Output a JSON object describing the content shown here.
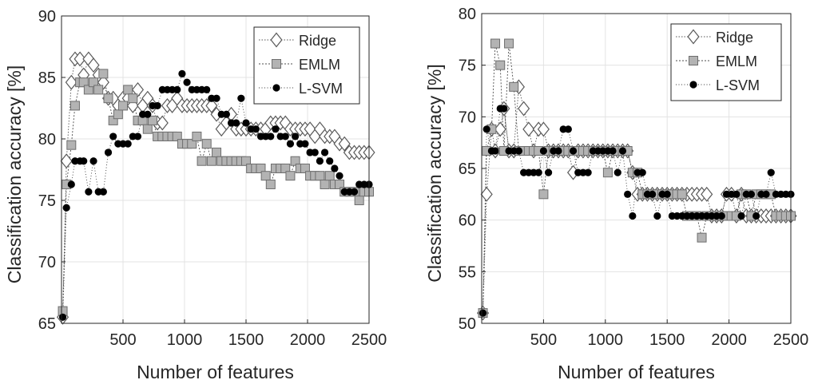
{
  "chart_data": [
    {
      "type": "line",
      "xlabel": "Number of features",
      "ylabel": "Classification accuracy [%]",
      "xlim": [
        0,
        2500
      ],
      "ylim": [
        65,
        90
      ],
      "xticks": [
        500,
        1000,
        1500,
        2000,
        2500
      ],
      "yticks": [
        65,
        70,
        75,
        80,
        85,
        90
      ],
      "grid": true,
      "legend_position": "top-right",
      "series": [
        {
          "name": "Ridge",
          "marker": "diamond",
          "x": [
            10,
            40,
            80,
            110,
            150,
            180,
            220,
            260,
            300,
            340,
            380,
            420,
            460,
            500,
            540,
            580,
            620,
            660,
            700,
            740,
            780,
            820,
            860,
            900,
            940,
            980,
            1020,
            1060,
            1100,
            1140,
            1180,
            1220,
            1260,
            1300,
            1340,
            1380,
            1420,
            1460,
            1500,
            1540,
            1580,
            1620,
            1660,
            1700,
            1740,
            1780,
            1820,
            1860,
            1900,
            1940,
            1980,
            2020,
            2060,
            2100,
            2140,
            2180,
            2220,
            2260,
            2300,
            2340,
            2380,
            2420,
            2460,
            2500
          ],
          "y": [
            65.5,
            78.2,
            84.6,
            86.5,
            86.5,
            85.2,
            86.5,
            86.0,
            85.2,
            84.6,
            83.3,
            83.3,
            82.7,
            83.3,
            83.3,
            82.7,
            84.0,
            82.7,
            83.3,
            82.7,
            81.3,
            81.3,
            82.7,
            82.7,
            83.3,
            82.7,
            82.7,
            82.7,
            82.7,
            82.7,
            82.7,
            82.7,
            82.0,
            80.8,
            81.3,
            82.0,
            80.8,
            80.8,
            80.8,
            80.8,
            80.8,
            80.8,
            80.8,
            81.3,
            81.3,
            81.3,
            81.3,
            80.8,
            80.8,
            80.8,
            80.8,
            80.8,
            80.2,
            80.8,
            80.2,
            80.2,
            80.2,
            79.6,
            79.6,
            78.9,
            78.9,
            78.9,
            78.9,
            78.9
          ]
        },
        {
          "name": "EMLM",
          "marker": "square",
          "x": [
            10,
            40,
            80,
            110,
            150,
            180,
            220,
            260,
            300,
            340,
            380,
            420,
            460,
            500,
            540,
            580,
            620,
            660,
            700,
            740,
            780,
            820,
            860,
            900,
            940,
            980,
            1020,
            1060,
            1100,
            1140,
            1180,
            1220,
            1260,
            1300,
            1340,
            1380,
            1420,
            1460,
            1500,
            1540,
            1580,
            1620,
            1660,
            1700,
            1740,
            1780,
            1820,
            1860,
            1900,
            1940,
            1980,
            2020,
            2060,
            2100,
            2140,
            2180,
            2220,
            2260,
            2300,
            2340,
            2380,
            2420,
            2460,
            2500
          ],
          "y": [
            66.0,
            76.3,
            79.5,
            82.7,
            84.6,
            84.6,
            84.0,
            84.6,
            84.0,
            85.3,
            83.3,
            81.5,
            82.0,
            82.7,
            84.0,
            83.3,
            81.5,
            81.5,
            80.8,
            81.5,
            80.2,
            80.2,
            80.2,
            80.2,
            80.2,
            79.6,
            79.6,
            79.6,
            80.2,
            78.2,
            79.6,
            78.2,
            78.9,
            78.2,
            78.2,
            78.2,
            78.2,
            78.2,
            78.2,
            77.6,
            77.6,
            77.6,
            77.0,
            76.3,
            77.6,
            77.6,
            77.6,
            77.0,
            78.2,
            77.6,
            77.6,
            77.0,
            77.0,
            77.0,
            76.3,
            77.0,
            76.3,
            76.3,
            75.7,
            75.7,
            75.7,
            75.0,
            75.7,
            75.7
          ]
        },
        {
          "name": "L-SVM",
          "marker": "circle",
          "x": [
            10,
            40,
            80,
            110,
            150,
            180,
            220,
            260,
            300,
            340,
            380,
            420,
            460,
            500,
            540,
            580,
            620,
            660,
            700,
            740,
            780,
            820,
            860,
            900,
            940,
            980,
            1020,
            1060,
            1100,
            1140,
            1180,
            1220,
            1260,
            1300,
            1340,
            1380,
            1420,
            1460,
            1500,
            1540,
            1580,
            1620,
            1660,
            1700,
            1740,
            1780,
            1820,
            1860,
            1900,
            1940,
            1980,
            2020,
            2060,
            2100,
            2140,
            2180,
            2220,
            2260,
            2300,
            2340,
            2380,
            2420,
            2460,
            2500
          ],
          "y": [
            65.5,
            74.4,
            76.3,
            78.2,
            78.2,
            78.2,
            75.7,
            78.2,
            75.7,
            75.7,
            78.9,
            80.2,
            79.6,
            79.6,
            79.6,
            80.2,
            80.2,
            82.0,
            82.0,
            82.7,
            82.7,
            84.0,
            84.0,
            84.0,
            84.0,
            85.3,
            84.6,
            84.0,
            84.0,
            84.0,
            84.0,
            83.3,
            83.3,
            82.0,
            82.0,
            81.3,
            81.3,
            83.3,
            81.3,
            80.8,
            80.8,
            80.2,
            80.2,
            80.2,
            80.8,
            80.2,
            80.2,
            79.6,
            80.2,
            79.6,
            79.6,
            78.9,
            78.9,
            78.2,
            78.9,
            78.2,
            77.6,
            77.0,
            75.7,
            75.7,
            75.7,
            76.3,
            76.3,
            76.3
          ]
        }
      ]
    },
    {
      "type": "line",
      "xlabel": "Number of features",
      "ylabel": "Classification accuracy [%]",
      "xlim": [
        0,
        2500
      ],
      "ylim": [
        50,
        80
      ],
      "xticks": [
        500,
        1000,
        1500,
        2000,
        2500
      ],
      "yticks": [
        50,
        55,
        60,
        65,
        70,
        75,
        80
      ],
      "grid": true,
      "legend_position": "top-right",
      "series": [
        {
          "name": "Ridge",
          "marker": "diamond",
          "x": [
            10,
            40,
            80,
            110,
            150,
            180,
            220,
            260,
            300,
            340,
            380,
            420,
            460,
            500,
            540,
            580,
            620,
            660,
            700,
            740,
            780,
            820,
            860,
            900,
            940,
            980,
            1020,
            1060,
            1100,
            1140,
            1180,
            1220,
            1260,
            1300,
            1340,
            1380,
            1420,
            1460,
            1500,
            1540,
            1580,
            1620,
            1660,
            1700,
            1740,
            1780,
            1820,
            1860,
            1900,
            1940,
            1980,
            2020,
            2060,
            2100,
            2140,
            2180,
            2220,
            2260,
            2300,
            2340,
            2380,
            2420,
            2460,
            2500
          ],
          "y": [
            51.0,
            62.5,
            68.8,
            66.7,
            68.8,
            70.8,
            66.7,
            66.7,
            72.9,
            70.8,
            68.8,
            66.7,
            68.8,
            68.8,
            66.7,
            66.7,
            66.7,
            66.7,
            66.7,
            64.6,
            66.7,
            66.7,
            66.7,
            66.7,
            66.7,
            66.7,
            66.7,
            66.7,
            66.7,
            66.7,
            66.7,
            64.6,
            62.5,
            62.5,
            62.5,
            62.5,
            62.5,
            62.5,
            62.5,
            62.5,
            62.5,
            62.5,
            62.5,
            62.5,
            62.5,
            62.5,
            62.5,
            60.4,
            60.4,
            60.4,
            62.5,
            62.5,
            60.4,
            62.5,
            60.4,
            60.4,
            60.4,
            60.4,
            60.4,
            60.4,
            60.4,
            60.4,
            60.4,
            60.4
          ]
        },
        {
          "name": "EMLM",
          "marker": "square",
          "x": [
            10,
            40,
            80,
            110,
            150,
            180,
            220,
            260,
            300,
            340,
            380,
            420,
            460,
            500,
            540,
            580,
            620,
            660,
            700,
            740,
            780,
            820,
            860,
            900,
            940,
            980,
            1020,
            1060,
            1100,
            1140,
            1180,
            1220,
            1260,
            1300,
            1340,
            1380,
            1420,
            1460,
            1500,
            1540,
            1580,
            1620,
            1660,
            1700,
            1740,
            1780,
            1820,
            1860,
            1900,
            1940,
            1980,
            2020,
            2060,
            2100,
            2140,
            2180,
            2220,
            2260,
            2300,
            2340,
            2380,
            2420,
            2460,
            2500
          ],
          "y": [
            51.0,
            66.7,
            68.8,
            77.1,
            75.0,
            66.7,
            77.1,
            72.9,
            66.7,
            66.7,
            66.7,
            66.7,
            66.7,
            62.5,
            66.7,
            66.7,
            66.7,
            66.7,
            66.7,
            66.7,
            66.7,
            66.7,
            66.7,
            66.7,
            66.7,
            66.7,
            64.6,
            66.7,
            66.7,
            66.7,
            66.7,
            64.6,
            64.6,
            62.5,
            62.5,
            62.5,
            62.5,
            62.5,
            62.5,
            62.5,
            62.5,
            62.5,
            60.4,
            60.4,
            60.4,
            58.3,
            60.4,
            60.4,
            60.4,
            60.4,
            60.4,
            60.4,
            60.4,
            62.5,
            62.5,
            60.4,
            62.5,
            62.5,
            62.5,
            62.5,
            60.4,
            60.4,
            60.4,
            60.4
          ]
        },
        {
          "name": "L-SVM",
          "marker": "circle",
          "x": [
            10,
            40,
            80,
            110,
            150,
            180,
            220,
            260,
            300,
            340,
            380,
            420,
            460,
            500,
            540,
            580,
            620,
            660,
            700,
            740,
            780,
            820,
            860,
            900,
            940,
            980,
            1020,
            1060,
            1100,
            1140,
            1180,
            1220,
            1260,
            1300,
            1340,
            1380,
            1420,
            1460,
            1500,
            1540,
            1580,
            1620,
            1660,
            1700,
            1740,
            1780,
            1820,
            1860,
            1900,
            1940,
            1980,
            2020,
            2060,
            2100,
            2140,
            2180,
            2220,
            2260,
            2300,
            2340,
            2380,
            2420,
            2460,
            2500
          ],
          "y": [
            51.0,
            68.8,
            66.7,
            66.7,
            70.8,
            70.8,
            66.7,
            66.7,
            66.7,
            64.6,
            64.6,
            64.6,
            64.6,
            66.7,
            64.6,
            66.7,
            66.7,
            68.8,
            68.8,
            66.7,
            64.6,
            64.6,
            64.6,
            66.7,
            66.7,
            66.7,
            66.7,
            66.7,
            64.6,
            66.7,
            62.5,
            60.4,
            64.6,
            64.6,
            62.5,
            62.5,
            60.4,
            62.5,
            62.5,
            60.4,
            60.4,
            60.4,
            60.4,
            60.4,
            60.4,
            60.4,
            60.4,
            60.4,
            60.4,
            60.4,
            62.5,
            62.5,
            62.5,
            60.4,
            62.5,
            62.5,
            60.4,
            62.5,
            62.5,
            64.6,
            62.5,
            62.5,
            62.5,
            62.5
          ]
        }
      ]
    }
  ]
}
